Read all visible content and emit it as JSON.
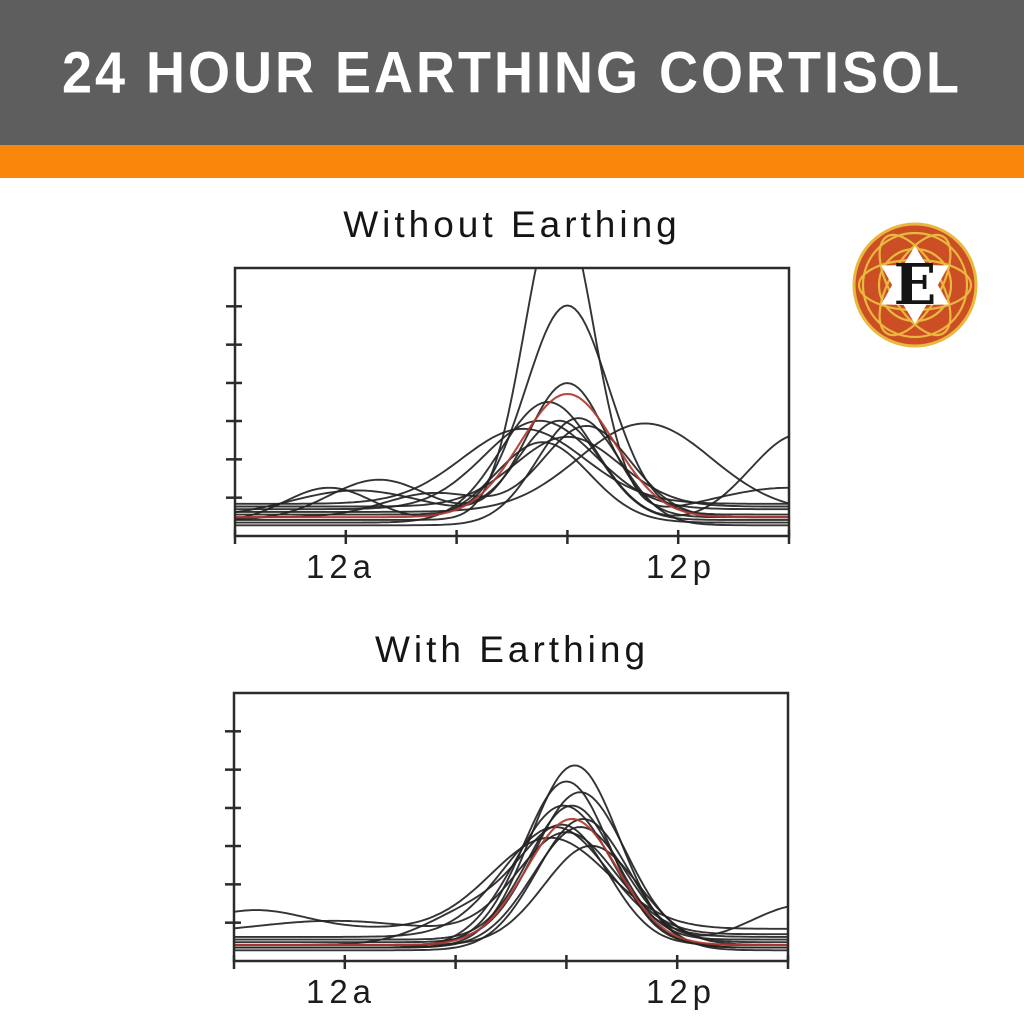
{
  "header": {
    "title": "24 HOUR EARTHING CORTISOL",
    "bg_color": "#5e5e5e",
    "text_color": "#ffffff",
    "accent_bar_color": "#f8870c"
  },
  "logo": {
    "letter": "E",
    "body_color": "#cb4e25",
    "lattice_color": "#e9b83f",
    "star_color": "#ffffff",
    "letter_color": "#141414"
  },
  "chart_data": [
    {
      "type": "line",
      "title": "Without Earthing",
      "axis_color": "#2b2b2b",
      "line_color": "#232323",
      "mean_line_color": "#b03a31",
      "grid": false,
      "x_axis": {
        "tick_positions": [
          0,
          0.2,
          0.4,
          0.6,
          0.8,
          1
        ],
        "labels": [
          {
            "text": "12a",
            "pos": 0.2
          },
          {
            "text": "12p",
            "pos": 0.8
          }
        ]
      },
      "y_axis": {
        "tick_positions": [
          0.143,
          0.286,
          0.429,
          0.571,
          0.714,
          0.857
        ]
      },
      "series_note": "individual subjects, normalized x over plot width, y as fraction of plot height from bottom; curves = base + gaussian bumps",
      "series": [
        {
          "base": 0.06,
          "bumps": [
            {
              "x": 0.585,
              "h": 1.18,
              "w": 0.062
            },
            {
              "x": 1.0,
              "h": 0.12,
              "w": 0.15
            }
          ]
        },
        {
          "base": 0.08,
          "bumps": [
            {
              "x": 0.6,
              "h": 0.78,
              "w": 0.075
            }
          ]
        },
        {
          "base": 0.07,
          "bumps": [
            {
              "x": 0.22,
              "h": 0.1,
              "w": 0.12
            },
            {
              "x": 0.6,
              "h": 0.5,
              "w": 0.072
            }
          ]
        },
        {
          "base": 0.05,
          "bumps": [
            {
              "x": 0.565,
              "h": 0.45,
              "w": 0.085
            },
            {
              "x": 1.02,
              "h": 0.33,
              "w": 0.09
            }
          ]
        },
        {
          "base": 0.1,
          "bumps": [
            {
              "x": 0.55,
              "h": 0.33,
              "w": 0.1
            }
          ]
        },
        {
          "base": 0.06,
          "bumps": [
            {
              "x": 0.26,
              "h": 0.15,
              "w": 0.09
            },
            {
              "x": 0.585,
              "h": 0.37,
              "w": 0.075
            }
          ]
        },
        {
          "base": 0.12,
          "bumps": [
            {
              "x": 0.52,
              "h": 0.28,
              "w": 0.11
            }
          ]
        },
        {
          "base": 0.04,
          "bumps": [
            {
              "x": 0.62,
              "h": 0.4,
              "w": 0.075
            }
          ]
        },
        {
          "base": 0.09,
          "bumps": [
            {
              "x": 0.74,
              "h": 0.33,
              "w": 0.12
            }
          ]
        },
        {
          "base": 0.05,
          "bumps": [
            {
              "x": 0.17,
              "h": 0.13,
              "w": 0.08
            },
            {
              "x": 0.555,
              "h": 0.3,
              "w": 0.085
            }
          ]
        },
        {
          "base": 0.11,
          "bumps": [
            {
              "x": 0.6,
              "h": 0.26,
              "w": 0.095
            }
          ]
        },
        {
          "base": 0.07,
          "bumps": [
            {
              "x": 0.36,
              "h": 0.09,
              "w": 0.09
            },
            {
              "x": 0.635,
              "h": 0.34,
              "w": 0.08
            }
          ]
        }
      ],
      "mean_series": {
        "base": 0.07,
        "bumps": [
          {
            "x": 0.6,
            "h": 0.46,
            "w": 0.085
          }
        ]
      }
    },
    {
      "type": "line",
      "title": "With Earthing",
      "axis_color": "#2b2b2b",
      "line_color": "#232323",
      "mean_line_color": "#b03a31",
      "grid": false,
      "x_axis": {
        "tick_positions": [
          0,
          0.2,
          0.4,
          0.6,
          0.8,
          1
        ],
        "labels": [
          {
            "text": "12a",
            "pos": 0.2
          },
          {
            "text": "12p",
            "pos": 0.8
          }
        ]
      },
      "y_axis": {
        "tick_positions": [
          0.143,
          0.286,
          0.429,
          0.571,
          0.714,
          0.857
        ]
      },
      "series": [
        {
          "base": 0.05,
          "bumps": [
            {
              "x": 0.615,
              "h": 0.68,
              "w": 0.08
            }
          ]
        },
        {
          "base": 0.06,
          "bumps": [
            {
              "x": 0.6,
              "h": 0.61,
              "w": 0.078
            }
          ]
        },
        {
          "base": 0.07,
          "bumps": [
            {
              "x": 0.625,
              "h": 0.56,
              "w": 0.082
            }
          ]
        },
        {
          "base": 0.05,
          "bumps": [
            {
              "x": 0.595,
              "h": 0.53,
              "w": 0.088
            }
          ]
        },
        {
          "base": 0.08,
          "bumps": [
            {
              "x": 0.61,
              "h": 0.5,
              "w": 0.078
            }
          ]
        },
        {
          "base": 0.04,
          "bumps": [
            {
              "x": 0.63,
              "h": 0.49,
              "w": 0.083
            }
          ]
        },
        {
          "base": 0.06,
          "bumps": [
            {
              "x": 0.44,
              "h": 0.13,
              "w": 0.09
            },
            {
              "x": 0.6,
              "h": 0.42,
              "w": 0.078
            }
          ]
        },
        {
          "base": 0.09,
          "bumps": [
            {
              "x": 0.58,
              "h": 0.41,
              "w": 0.095
            }
          ]
        },
        {
          "base": 0.05,
          "bumps": [
            {
              "x": 0.625,
              "h": 0.45,
              "w": 0.085
            },
            {
              "x": 1.03,
              "h": 0.16,
              "w": 0.1
            }
          ]
        },
        {
          "base": 0.1,
          "bumps": [
            {
              "x": 0.18,
              "h": 0.05,
              "w": 0.14
            },
            {
              "x": 0.6,
              "h": 0.38,
              "w": 0.088
            }
          ]
        },
        {
          "base": 0.06,
          "bumps": [
            {
              "x": 0.645,
              "h": 0.37,
              "w": 0.085
            }
          ]
        },
        {
          "base": 0.12,
          "bumps": [
            {
              "x": 0.04,
              "h": 0.07,
              "w": 0.09
            },
            {
              "x": 0.57,
              "h": 0.34,
              "w": 0.105
            }
          ]
        }
      ],
      "mean_series": {
        "base": 0.06,
        "bumps": [
          {
            "x": 0.61,
            "h": 0.47,
            "w": 0.082
          }
        ]
      }
    }
  ]
}
